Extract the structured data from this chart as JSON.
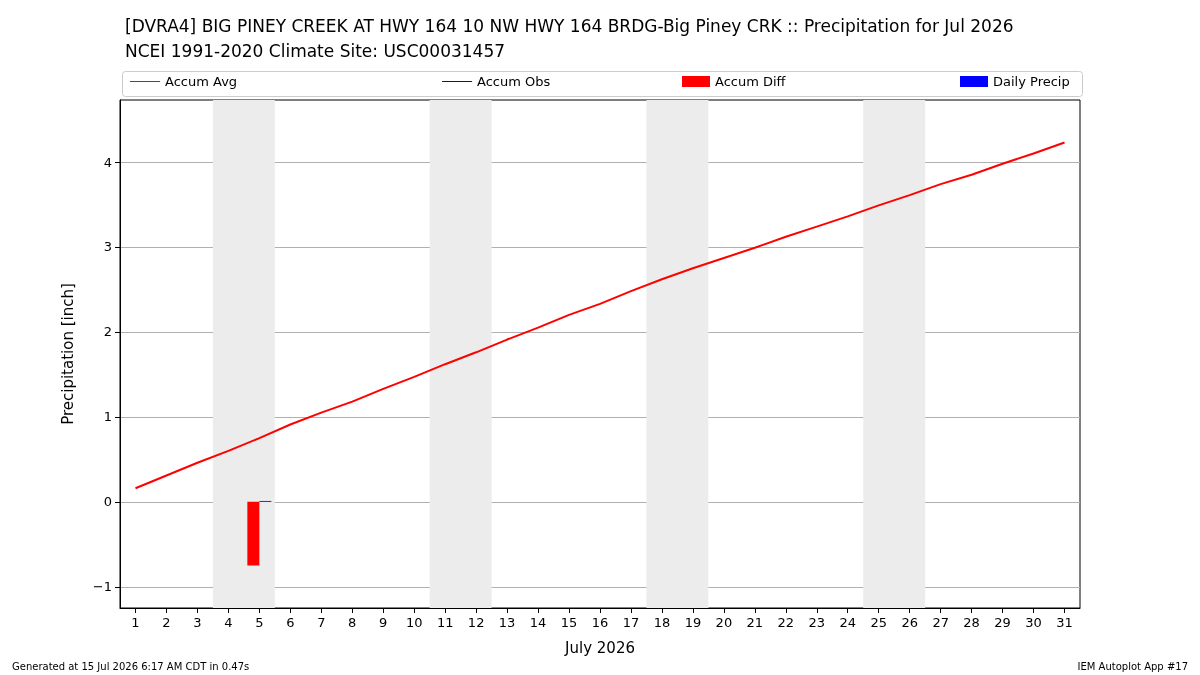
{
  "chart_data": {
    "type": "line",
    "title": "[DVRA4] BIG PINEY CREEK AT HWY 164 10 NW HWY 164 BRDG-Big Piney CRK :: Precipitation for Jul 2026",
    "subtitle": "NCEI 1991-2020 Climate Site: USC00031457",
    "xlabel": "July 2026",
    "ylabel": "Precipitation [inch]",
    "x": [
      1,
      2,
      3,
      4,
      5,
      6,
      7,
      8,
      9,
      10,
      11,
      12,
      13,
      14,
      15,
      16,
      17,
      18,
      19,
      20,
      21,
      22,
      23,
      24,
      25,
      26,
      27,
      28,
      29,
      30,
      31
    ],
    "series": [
      {
        "name": "Accum Avg",
        "color": "#ff0000",
        "values": [
          0.16,
          0.31,
          0.46,
          0.6,
          0.75,
          0.91,
          1.05,
          1.18,
          1.33,
          1.47,
          1.62,
          1.76,
          1.91,
          2.05,
          2.2,
          2.33,
          2.48,
          2.62,
          2.75,
          2.87,
          2.99,
          3.12,
          3.24,
          3.36,
          3.49,
          3.61,
          3.74,
          3.85,
          3.98,
          4.1,
          4.23
        ]
      },
      {
        "name": "Accum Obs",
        "color": "#0000ff",
        "values": [
          null,
          null,
          null,
          null,
          null,
          null,
          null,
          null,
          null,
          null,
          null,
          null,
          null,
          null,
          null,
          null,
          null,
          null,
          null,
          null,
          null,
          null,
          null,
          null,
          null,
          null,
          null,
          null,
          null,
          null,
          null
        ]
      },
      {
        "name": "Accum Diff",
        "type": "bar",
        "color": "#ff0000",
        "values": [
          null,
          null,
          null,
          null,
          -0.75,
          null,
          null,
          null,
          null,
          null,
          null,
          null,
          null,
          null,
          null,
          null,
          null,
          null,
          null,
          null,
          null,
          null,
          null,
          null,
          null,
          null,
          null,
          null,
          null,
          null,
          null
        ]
      },
      {
        "name": "Daily Precip",
        "type": "bar",
        "color": "#0000ff",
        "values": [
          null,
          null,
          null,
          null,
          0.01,
          null,
          null,
          null,
          null,
          null,
          null,
          null,
          null,
          null,
          null,
          null,
          null,
          null,
          null,
          null,
          null,
          null,
          null,
          null,
          null,
          null,
          null,
          null,
          null,
          null,
          null
        ]
      }
    ],
    "xlim": [
      0.5,
      31.5
    ],
    "xticks": [
      1,
      2,
      3,
      4,
      5,
      6,
      7,
      8,
      9,
      10,
      11,
      12,
      13,
      14,
      15,
      16,
      17,
      18,
      19,
      20,
      21,
      22,
      23,
      24,
      25,
      26,
      27,
      28,
      29,
      30,
      31
    ],
    "ylim": [
      -1.25,
      4.73
    ],
    "yticks": [
      {
        "value": -1,
        "label": "−1"
      },
      0,
      1,
      2,
      3,
      4
    ],
    "bands": [
      {
        "axis": "x",
        "from": 3.5,
        "to": 5.5,
        "color": "#ececec"
      },
      {
        "axis": "x",
        "from": 10.5,
        "to": 12.5,
        "color": "#ececec"
      },
      {
        "axis": "x",
        "from": 17.5,
        "to": 19.5,
        "color": "#ececec"
      },
      {
        "axis": "x",
        "from": 24.5,
        "to": 26.5,
        "color": "#ececec"
      }
    ],
    "grid": "y",
    "legend": "top",
    "marker": "none",
    "line_style": "solid",
    "annotations": [
      "Generated at 15 Jul 2026 6:17 AM CDT in 0.47s",
      "IEM Autoplot App #17"
    ]
  }
}
